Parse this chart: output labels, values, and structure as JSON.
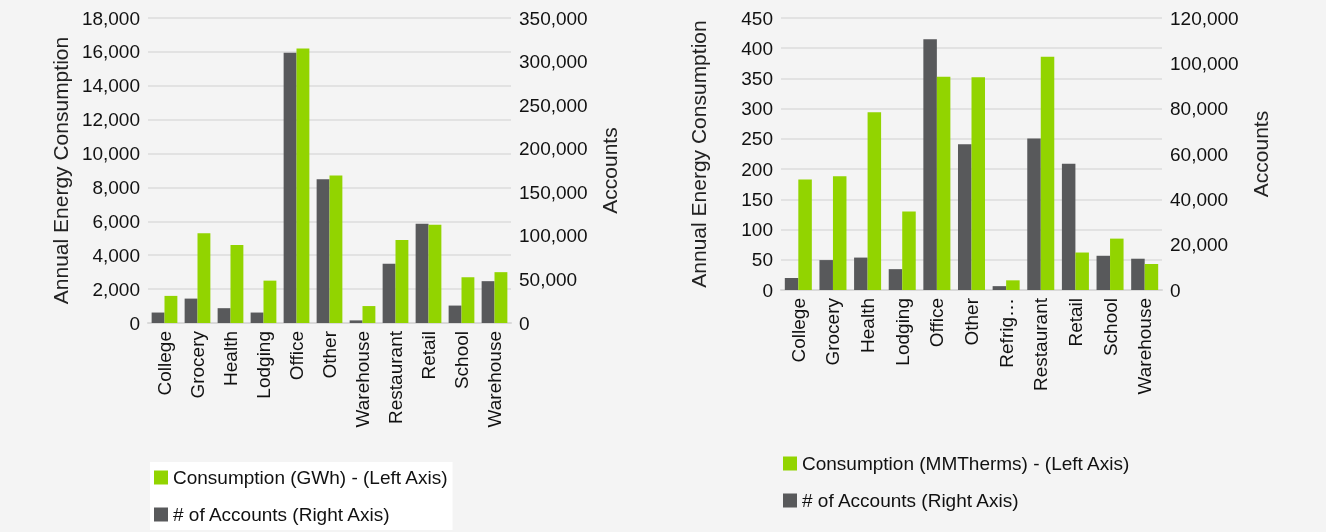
{
  "chart_data": [
    {
      "type": "bar",
      "ylabel": "Annual Energy Consumption",
      "y2label": "Accounts",
      "categories": [
        "College",
        "Grocery",
        "Health",
        "Lodging",
        "Office",
        "Other",
        "Warehouse",
        "Restaurant",
        "Retail",
        "School",
        "Warehouse"
      ],
      "series": [
        {
          "name": "# of Accounts (Right Axis)",
          "color": "#58595b",
          "axis": "y2",
          "values": [
            12000,
            28000,
            17000,
            12000,
            310000,
            165000,
            3000,
            68000,
            114000,
            20000,
            48000
          ]
        },
        {
          "name": "Consumption (GWh) - (Left Axis)",
          "color": "#92d400",
          "values": [
            1600,
            5300,
            4600,
            2500,
            16200,
            8700,
            1000,
            4900,
            5800,
            2700,
            3000
          ]
        }
      ],
      "ylim": [
        0,
        18000
      ],
      "yticks": [
        0,
        {
          "value": 2000,
          "label": "2,000"
        },
        {
          "value": 4000,
          "label": "4,000"
        },
        {
          "value": 6000,
          "label": "6,000"
        },
        {
          "value": 8000,
          "label": "8,000"
        },
        {
          "value": 10000,
          "label": "10,000"
        },
        {
          "value": 12000,
          "label": "12,000"
        },
        {
          "value": 14000,
          "label": "14,000"
        },
        {
          "value": 16000,
          "label": "16,000"
        },
        {
          "value": 18000,
          "label": "18,000"
        }
      ],
      "y2lim": [
        0,
        350000
      ],
      "y2ticks": [
        0,
        {
          "value": 50000,
          "label": "50,000"
        },
        {
          "value": 100000,
          "label": "100,000"
        },
        {
          "value": 150000,
          "label": "150,000"
        },
        {
          "value": 200000,
          "label": "200,000"
        },
        {
          "value": 250000,
          "label": "250,000"
        },
        {
          "value": 300000,
          "label": "300,000"
        },
        {
          "value": 350000,
          "label": "350,000"
        }
      ],
      "grid": "y",
      "legend": "bottom"
    },
    {
      "type": "bar",
      "ylabel": "Annual Energy Consumption",
      "y2label": "Accounts",
      "categories": [
        "College",
        "Grocery",
        "Health",
        "Lodging",
        "Office",
        "Other",
        "Refrig…",
        "Restaurant",
        "Retail",
        "School",
        "Warehouse"
      ],
      "series": [
        {
          "name": "# of Accounts (Right Axis)",
          "color": "#58595b",
          "axis": "y2",
          "values": [
            5300,
            13200,
            14300,
            9200,
            110600,
            64300,
            1700,
            66800,
            55700,
            15100,
            13800
          ]
        },
        {
          "name": "Consumption (MMTherms) - (Left Axis)",
          "color": "#92d400",
          "values": [
            183,
            188,
            294,
            130,
            353,
            352,
            16,
            386,
            62,
            85,
            43
          ]
        }
      ],
      "ylim": [
        0,
        450
      ],
      "yticks": [
        0,
        50,
        100,
        150,
        200,
        250,
        300,
        350,
        400,
        450
      ],
      "y2lim": [
        0,
        120000
      ],
      "y2ticks": [
        0,
        {
          "value": 20000,
          "label": "20,000"
        },
        {
          "value": 40000,
          "label": "40,000"
        },
        {
          "value": 60000,
          "label": "60,000"
        },
        {
          "value": 80000,
          "label": "80,000"
        },
        {
          "value": 100000,
          "label": "100,000"
        },
        {
          "value": 120000,
          "label": "120,000"
        }
      ],
      "grid": "y",
      "legend": "bottom"
    }
  ]
}
